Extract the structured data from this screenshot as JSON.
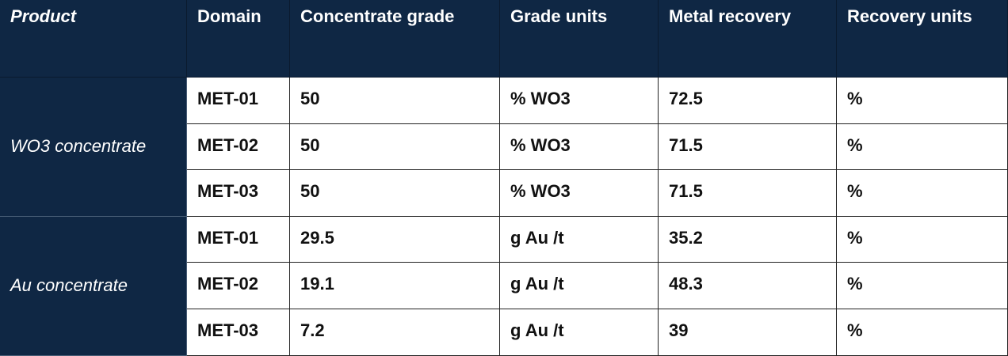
{
  "table": {
    "header": [
      "Product",
      "Domain",
      "Concentrate grade",
      "Grade units",
      "Metal recovery",
      "Recovery units"
    ],
    "groups": [
      {
        "product": "WO3 concentrate",
        "rows": [
          [
            "MET-01",
            50,
            "% WO3",
            72.5,
            "%"
          ],
          [
            "MET-02",
            50,
            "% WO3",
            71.5,
            "%"
          ],
          [
            "MET-03",
            50,
            "% WO3",
            71.5,
            "%"
          ]
        ]
      },
      {
        "product": "Au concentrate",
        "rows": [
          [
            "MET-01",
            29.5,
            "g Au /t",
            35.2,
            "%"
          ],
          [
            "MET-02",
            19.1,
            "g Au /t",
            48.3,
            "%"
          ],
          [
            "MET-03",
            7.2,
            "g Au /t",
            39,
            "%"
          ]
        ]
      }
    ]
  }
}
